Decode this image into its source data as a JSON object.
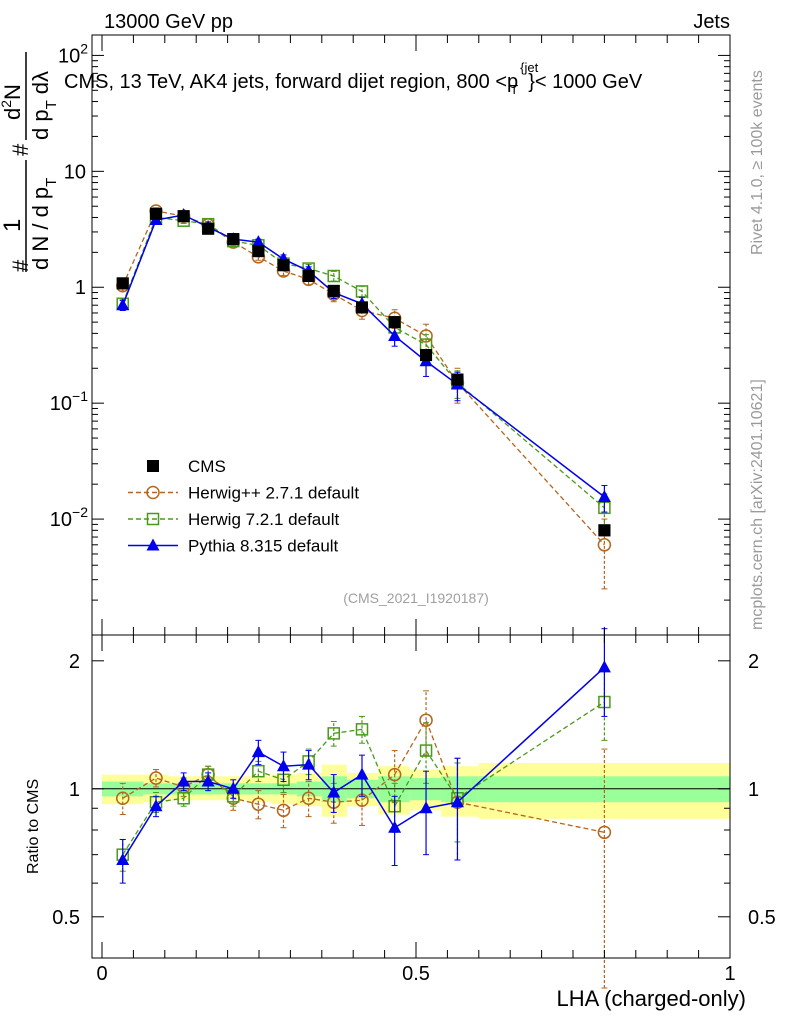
{
  "header": {
    "left": "13000 GeV pp",
    "right": "Jets",
    "title": "CMS, 13 TeV, AK4 jets, forward dijet region, 800 <p",
    "title_sup": "{jet",
    "title_sub": "T",
    "title_end": "}< 1000 GeV",
    "side_top": "Rivet 4.1.0, ≥ 100k events",
    "side_bottom": "mcplots.cern.ch [arXiv:2401.10621]",
    "analysis": "(CMS_2021_I1920187)"
  },
  "ylabel_main": {
    "hash1": "#",
    "one": "1",
    "dN": "d N / d p",
    "T1": "T",
    "hash2": "#",
    "d2N": "d",
    "two": "2",
    "N": "N",
    "dp": "d p",
    "T2": "T",
    "dl": "dλ"
  },
  "chart_data": {
    "type": "line",
    "xlabel": "LHA (charged-only)",
    "xlim": [
      0,
      1
    ],
    "x_ticks": [
      "0",
      "0.5",
      "1"
    ],
    "main": {
      "yscale": "log",
      "ylim": [
        0.001,
        150
      ],
      "y_ticks": [
        {
          "value": 0.01,
          "base": "10",
          "exp": "−2"
        },
        {
          "value": 0.1,
          "base": "10",
          "exp": "−1"
        },
        {
          "value": 1,
          "label": "1"
        },
        {
          "value": 10,
          "label": "10"
        },
        {
          "value": 100,
          "base": "10",
          "exp": "2"
        }
      ],
      "x": [
        0.033,
        0.086,
        0.13,
        0.169,
        0.209,
        0.249,
        0.289,
        0.329,
        0.369,
        0.414,
        0.466,
        0.516,
        0.566,
        0.8
      ],
      "series": [
        {
          "name": "CMS",
          "marker": "square",
          "color": "#000000",
          "line": "none",
          "values": [
            1.08,
            4.3,
            4.1,
            3.2,
            2.6,
            2.05,
            1.55,
            1.25,
            0.93,
            0.67,
            0.5,
            0.26,
            0.16,
            0.008
          ]
        },
        {
          "name": "Herwig++ 2.7.1 default",
          "marker": "open-circle",
          "color": "#b5651d",
          "line": "dashed",
          "values": [
            1.03,
            4.55,
            4.1,
            3.45,
            2.45,
            1.83,
            1.38,
            1.17,
            0.87,
            0.63,
            0.54,
            0.38,
            0.15,
            0.006
          ],
          "err_low": [
            0.1,
            0.3,
            0.2,
            0.2,
            0.15,
            0.12,
            0.12,
            0.12,
            0.12,
            0.1,
            0.1,
            0.1,
            0.05,
            0.0035
          ],
          "err_high": [
            0.1,
            0.3,
            0.2,
            0.2,
            0.15,
            0.12,
            0.12,
            0.12,
            0.12,
            0.1,
            0.1,
            0.1,
            0.05,
            0.004
          ]
        },
        {
          "name": "Herwig 7.2.1 default",
          "marker": "open-square",
          "color": "#4a9a1a",
          "line": "dashed",
          "values": [
            0.72,
            4.0,
            3.75,
            3.5,
            2.5,
            2.3,
            1.6,
            1.45,
            1.25,
            0.92,
            0.45,
            0.32,
            0.15,
            0.0125
          ],
          "err_low": [
            0.07,
            0.2,
            0.2,
            0.2,
            0.15,
            0.15,
            0.12,
            0.12,
            0.12,
            0.1,
            0.08,
            0.07,
            0.04,
            0.004
          ],
          "err_high": [
            0.07,
            0.2,
            0.2,
            0.2,
            0.15,
            0.15,
            0.12,
            0.12,
            0.12,
            0.1,
            0.08,
            0.07,
            0.04,
            0.004
          ]
        },
        {
          "name": "Pythia 8.315 default",
          "marker": "filled-triangle",
          "color": "#0000ee",
          "line": "solid",
          "values": [
            0.7,
            3.8,
            4.2,
            3.3,
            2.6,
            2.45,
            1.75,
            1.38,
            0.9,
            0.72,
            0.38,
            0.23,
            0.145,
            0.0155
          ],
          "err_low": [
            0.07,
            0.25,
            0.2,
            0.2,
            0.15,
            0.15,
            0.15,
            0.12,
            0.1,
            0.1,
            0.07,
            0.06,
            0.04,
            0.004
          ],
          "err_high": [
            0.07,
            0.25,
            0.2,
            0.2,
            0.15,
            0.15,
            0.15,
            0.12,
            0.1,
            0.1,
            0.07,
            0.06,
            0.04,
            0.004
          ]
        }
      ]
    },
    "ratio": {
      "ylabel": "Ratio to CMS",
      "ylim": [
        0.4,
        2.3
      ],
      "y_ticks": [
        {
          "value": 0.5,
          "label": "0.5"
        },
        {
          "value": 1,
          "label": "1"
        },
        {
          "value": 2,
          "label": "2"
        }
      ],
      "bins": [
        {
          "x0": 0.0,
          "x1": 0.066,
          "green": [
            0.96,
            1.04
          ],
          "yellow": [
            0.92,
            1.08
          ]
        },
        {
          "x0": 0.066,
          "x1": 0.106,
          "green": [
            0.97,
            1.03
          ],
          "yellow": [
            0.93,
            1.08
          ]
        },
        {
          "x0": 0.106,
          "x1": 0.15,
          "green": [
            0.97,
            1.03
          ],
          "yellow": [
            0.94,
            1.07
          ]
        },
        {
          "x0": 0.15,
          "x1": 0.19,
          "green": [
            0.97,
            1.03
          ],
          "yellow": [
            0.94,
            1.07
          ]
        },
        {
          "x0": 0.19,
          "x1": 0.23,
          "green": [
            0.97,
            1.03
          ],
          "yellow": [
            0.94,
            1.07
          ]
        },
        {
          "x0": 0.23,
          "x1": 0.27,
          "green": [
            0.97,
            1.03
          ],
          "yellow": [
            0.93,
            1.07
          ]
        },
        {
          "x0": 0.27,
          "x1": 0.31,
          "green": [
            0.97,
            1.03
          ],
          "yellow": [
            0.92,
            1.08
          ]
        },
        {
          "x0": 0.31,
          "x1": 0.35,
          "green": [
            0.96,
            1.04
          ],
          "yellow": [
            0.91,
            1.09
          ]
        },
        {
          "x0": 0.35,
          "x1": 0.39,
          "green": [
            0.93,
            1.07
          ],
          "yellow": [
            0.86,
            1.14
          ]
        },
        {
          "x0": 0.39,
          "x1": 0.44,
          "green": [
            0.95,
            1.05
          ],
          "yellow": [
            0.91,
            1.09
          ]
        },
        {
          "x0": 0.44,
          "x1": 0.49,
          "green": [
            0.93,
            1.07
          ],
          "yellow": [
            0.87,
            1.13
          ]
        },
        {
          "x0": 0.49,
          "x1": 0.54,
          "green": [
            0.94,
            1.06
          ],
          "yellow": [
            0.89,
            1.11
          ]
        },
        {
          "x0": 0.54,
          "x1": 0.6,
          "green": [
            0.93,
            1.07
          ],
          "yellow": [
            0.86,
            1.13
          ]
        },
        {
          "x0": 0.6,
          "x1": 1.0,
          "green": [
            0.93,
            1.07
          ],
          "yellow": [
            0.85,
            1.15
          ]
        }
      ],
      "x": [
        0.033,
        0.086,
        0.13,
        0.169,
        0.209,
        0.249,
        0.289,
        0.329,
        0.369,
        0.414,
        0.466,
        0.516,
        0.566,
        0.8
      ],
      "series": [
        {
          "name": "Herwig++ 2.7.1 default",
          "color": "#b5651d",
          "marker": "open-circle",
          "line": "dashed",
          "values": [
            0.95,
            1.06,
            1.01,
            1.08,
            0.95,
            0.92,
            0.89,
            0.95,
            0.93,
            0.94,
            1.08,
            1.45,
            0.93,
            0.79
          ],
          "err": [
            0.08,
            0.05,
            0.05,
            0.05,
            0.06,
            0.07,
            0.08,
            0.09,
            0.1,
            0.12,
            0.15,
            0.25,
            0.25,
            0.45
          ]
        },
        {
          "name": "Herwig 7.2.1 default",
          "color": "#4a9a1a",
          "marker": "open-square",
          "line": "dashed",
          "values": [
            0.7,
            0.93,
            0.95,
            1.08,
            0.96,
            1.1,
            1.05,
            1.16,
            1.35,
            1.38,
            0.91,
            1.23,
            0.95,
            1.6
          ],
          "err": [
            0.06,
            0.05,
            0.04,
            0.05,
            0.05,
            0.06,
            0.07,
            0.08,
            0.09,
            0.1,
            0.12,
            0.2,
            0.2,
            0.3
          ]
        },
        {
          "name": "Pythia 8.315 default",
          "color": "#0000ee",
          "marker": "filled-triangle",
          "line": "solid",
          "values": [
            0.68,
            0.91,
            1.04,
            1.04,
            1.0,
            1.22,
            1.13,
            1.14,
            0.98,
            1.08,
            0.81,
            0.9,
            0.93,
            1.93
          ],
          "err": [
            0.08,
            0.05,
            0.05,
            0.05,
            0.05,
            0.08,
            0.09,
            0.09,
            0.1,
            0.12,
            0.15,
            0.2,
            0.25,
            0.45
          ]
        }
      ]
    }
  }
}
